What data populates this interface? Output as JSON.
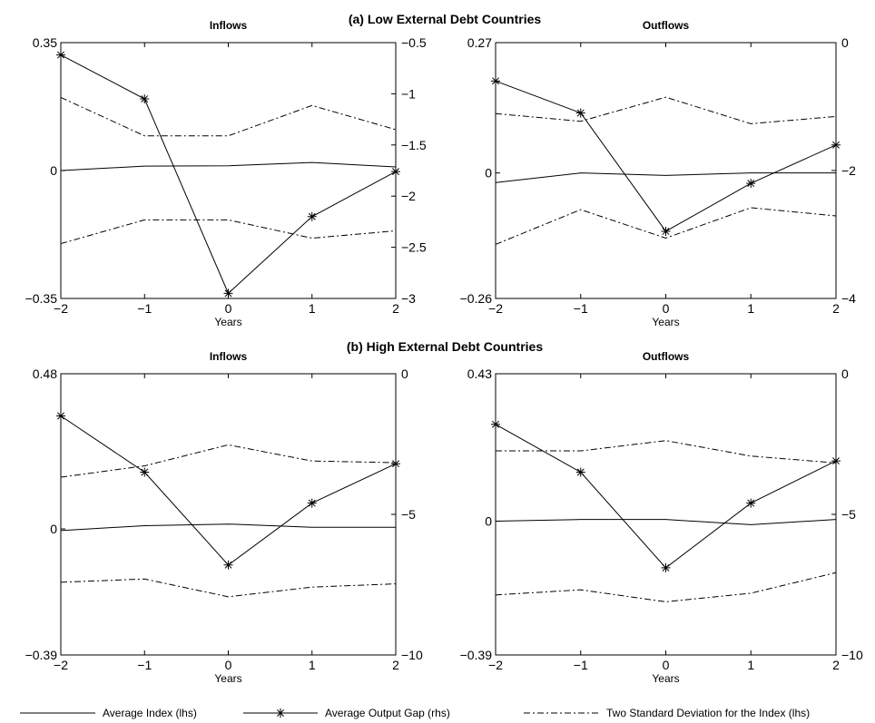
{
  "sections": [
    "(a) Low External Debt Countries",
    "(b) High External Debt Countries"
  ],
  "legend": [
    {
      "label": "Average Index (lhs)",
      "style": "solid"
    },
    {
      "label": "Average Output Gap (rhs)",
      "style": "star"
    },
    {
      "label": "Two Standard Deviation for the Index (lhs)",
      "style": "dashdot"
    }
  ],
  "chart_data": [
    {
      "type": "line",
      "section": "(a) Low External Debt Countries",
      "title": "Inflows",
      "xlabel": "Years",
      "x": [
        -2,
        -1,
        0,
        1,
        2
      ],
      "xticks": [
        "−2",
        "−1",
        "0",
        "1",
        "2"
      ],
      "ylim": [
        -0.35,
        0.35
      ],
      "yticks": [
        {
          "v": 0.35,
          "t": "0.35"
        },
        {
          "v": 0,
          "t": "0"
        },
        {
          "v": -0.35,
          "t": "−0.35"
        }
      ],
      "y2lim": [
        -3,
        -0.5
      ],
      "y2ticks": [
        {
          "v": -0.5,
          "t": "−0.5"
        },
        {
          "v": -1,
          "t": "−1"
        },
        {
          "v": -1.5,
          "t": "−1.5"
        },
        {
          "v": -2,
          "t": "−2"
        },
        {
          "v": -2.5,
          "t": "−2.5"
        },
        {
          "v": -3,
          "t": "−3"
        }
      ],
      "series": [
        {
          "name": "Average Index (lhs)",
          "axis": "left",
          "style": "solid",
          "values": [
            0.0,
            0.012,
            0.013,
            0.022,
            0.01
          ]
        },
        {
          "name": "Two Standard Deviation for the Index (lhs)",
          "axis": "left",
          "style": "dashdot",
          "values": [
            0.2,
            0.095,
            0.095,
            0.178,
            0.112
          ]
        },
        {
          "name": "Two Standard Deviation for the Index (lhs)",
          "axis": "left",
          "style": "dashdot",
          "values": [
            -0.2,
            -0.135,
            -0.135,
            -0.185,
            -0.165
          ]
        },
        {
          "name": "Average Output Gap (rhs)",
          "axis": "right",
          "style": "star",
          "values": [
            -0.62,
            -1.05,
            -2.95,
            -2.2,
            -1.76
          ]
        }
      ]
    },
    {
      "type": "line",
      "section": "(a) Low External Debt Countries",
      "title": "Outflows",
      "xlabel": "Years",
      "x": [
        -2,
        -1,
        0,
        1,
        2
      ],
      "xticks": [
        "−2",
        "−1",
        "0",
        "1",
        "2"
      ],
      "ylim": [
        -0.26,
        0.27
      ],
      "yticks": [
        {
          "v": 0.27,
          "t": "0.27"
        },
        {
          "v": 0,
          "t": "0"
        },
        {
          "v": -0.26,
          "t": "−0.26"
        }
      ],
      "y2lim": [
        -4,
        0
      ],
      "y2ticks": [
        {
          "v": 0,
          "t": "0"
        },
        {
          "v": -2,
          "t": "−2"
        },
        {
          "v": -4,
          "t": "−4"
        }
      ],
      "series": [
        {
          "name": "Average Index (lhs)",
          "axis": "left",
          "style": "solid",
          "values": [
            -0.02,
            0.0,
            -0.005,
            0.0,
            0.0
          ]
        },
        {
          "name": "Two Standard Deviation for the Index (lhs)",
          "axis": "left",
          "style": "dashdot",
          "values": [
            0.123,
            0.107,
            0.157,
            0.102,
            0.117
          ]
        },
        {
          "name": "Two Standard Deviation for the Index (lhs)",
          "axis": "left",
          "style": "dashdot",
          "values": [
            -0.148,
            -0.076,
            -0.135,
            -0.072,
            -0.089
          ]
        },
        {
          "name": "Average Output Gap (rhs)",
          "axis": "right",
          "style": "star",
          "values": [
            -0.6,
            -1.1,
            -2.95,
            -2.2,
            -1.6
          ]
        }
      ]
    },
    {
      "type": "line",
      "section": "(b) High External Debt Countries",
      "title": "Inflows",
      "xlabel": "Years",
      "x": [
        -2,
        -1,
        0,
        1,
        2
      ],
      "xticks": [
        "−2",
        "−1",
        "0",
        "1",
        "2"
      ],
      "ylim": [
        -0.39,
        0.48
      ],
      "yticks": [
        {
          "v": 0.48,
          "t": "0.48"
        },
        {
          "v": 0,
          "t": "0"
        },
        {
          "v": -0.39,
          "t": "−0.39"
        }
      ],
      "y2lim": [
        -10,
        0
      ],
      "y2ticks": [
        {
          "v": 0,
          "t": "0"
        },
        {
          "v": -5,
          "t": "−5"
        },
        {
          "v": -10,
          "t": "−10"
        }
      ],
      "series": [
        {
          "name": "Average Index (lhs)",
          "axis": "left",
          "style": "solid",
          "values": [
            -0.005,
            0.01,
            0.015,
            0.005,
            0.005
          ]
        },
        {
          "name": "Two Standard Deviation for the Index (lhs)",
          "axis": "left",
          "style": "dashdot",
          "values": [
            0.16,
            0.195,
            0.26,
            0.21,
            0.205
          ]
        },
        {
          "name": "Two Standard Deviation for the Index (lhs)",
          "axis": "left",
          "style": "dashdot",
          "values": [
            -0.165,
            -0.155,
            -0.21,
            -0.18,
            -0.17
          ]
        },
        {
          "name": "Average Output Gap (rhs)",
          "axis": "right",
          "style": "star",
          "values": [
            -1.5,
            -3.5,
            -6.8,
            -4.6,
            -3.2
          ]
        }
      ]
    },
    {
      "type": "line",
      "section": "(b) High External Debt Countries",
      "title": "Outflows",
      "xlabel": "Years",
      "x": [
        -2,
        -1,
        0,
        1,
        2
      ],
      "xticks": [
        "−2",
        "−1",
        "0",
        "1",
        "2"
      ],
      "ylim": [
        -0.39,
        0.43
      ],
      "yticks": [
        {
          "v": 0.43,
          "t": "0.43"
        },
        {
          "v": 0,
          "t": "0"
        },
        {
          "v": -0.39,
          "t": "−0.39"
        }
      ],
      "y2lim": [
        -10,
        0
      ],
      "y2ticks": [
        {
          "v": 0,
          "t": "0"
        },
        {
          "v": -5,
          "t": "−5"
        },
        {
          "v": -10,
          "t": "−10"
        }
      ],
      "series": [
        {
          "name": "Average Index (lhs)",
          "axis": "left",
          "style": "solid",
          "values": [
            0.0,
            0.005,
            0.005,
            -0.01,
            0.005
          ]
        },
        {
          "name": "Two Standard Deviation for the Index (lhs)",
          "axis": "left",
          "style": "dashdot",
          "values": [
            0.205,
            0.205,
            0.235,
            0.19,
            0.17
          ]
        },
        {
          "name": "Two Standard Deviation for the Index (lhs)",
          "axis": "left",
          "style": "dashdot",
          "values": [
            -0.215,
            -0.2,
            -0.235,
            -0.21,
            -0.15
          ]
        },
        {
          "name": "Average Output Gap (rhs)",
          "axis": "right",
          "style": "star",
          "values": [
            -1.8,
            -3.5,
            -6.9,
            -4.6,
            -3.1
          ]
        }
      ]
    }
  ]
}
